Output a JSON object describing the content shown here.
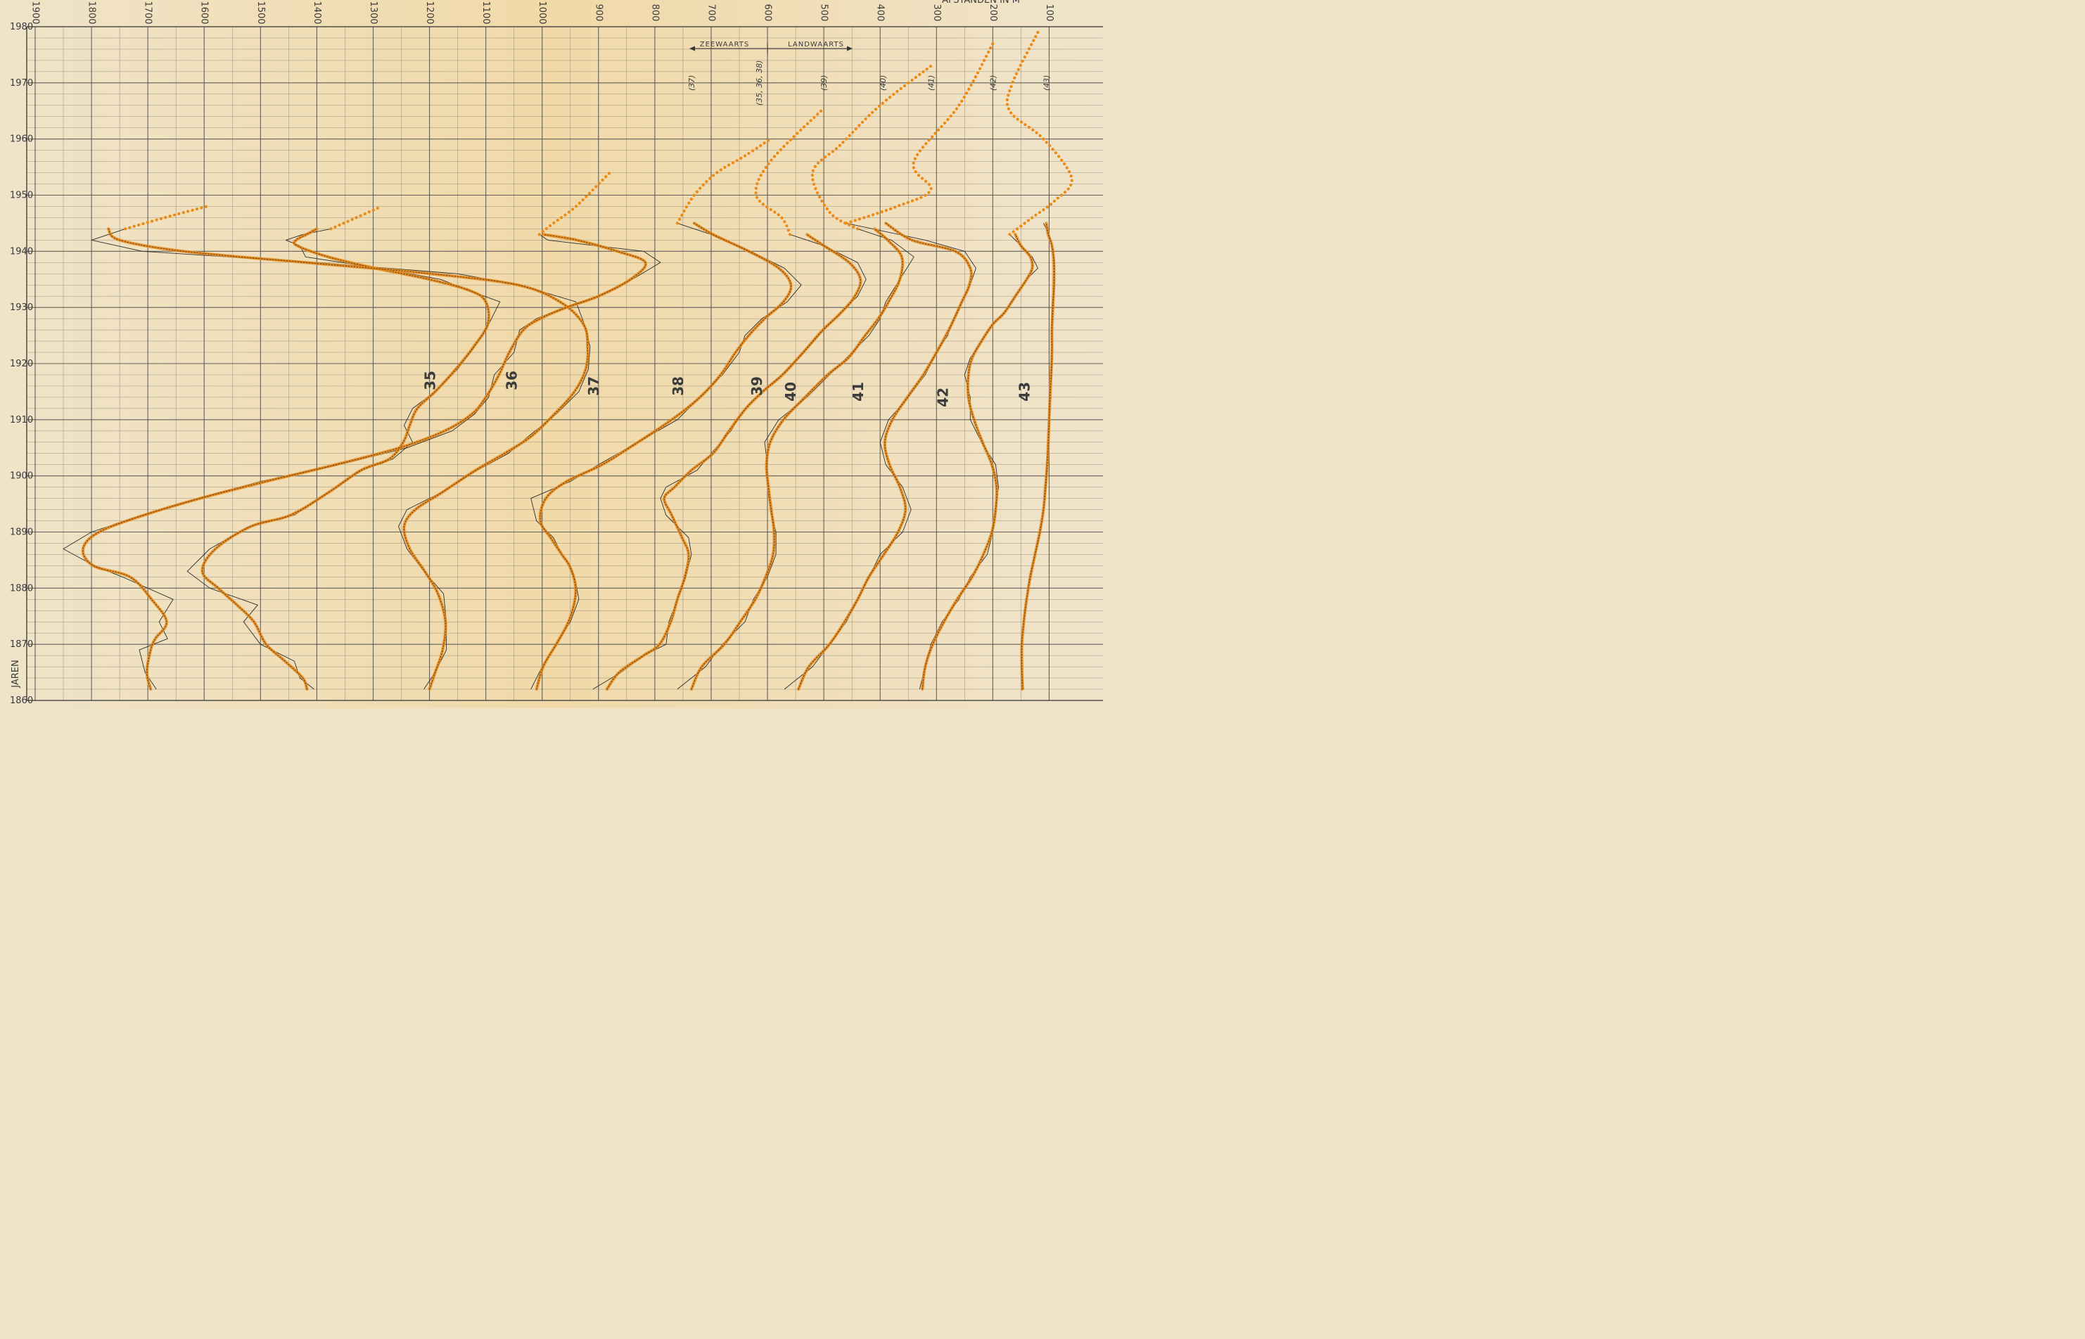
{
  "chart_data": {
    "type": "line",
    "x_axis": {
      "ticks": [
        1900,
        1800,
        1700,
        1600,
        1500,
        1400,
        1300,
        1200,
        1100,
        1000,
        900,
        800,
        700,
        600,
        500,
        400,
        300,
        200,
        100
      ],
      "xlim": [
        1905,
        80
      ],
      "header_fragment": "AFSTANDEN IN M"
    },
    "y_axis": {
      "ylabel": "JAREN",
      "ticks": [
        1860,
        1870,
        1880,
        1890,
        1900,
        1910,
        1920,
        1930,
        1940,
        1950,
        1960,
        1970,
        1980
      ],
      "ylim": [
        1860,
        1980
      ]
    },
    "grid": true,
    "annotations": {
      "seaward": "ZEEWAARTS",
      "landward": "LANDWAARTS",
      "arrow_origin_x": 600
    },
    "colors": {
      "background": "#efe3c6",
      "grid": "#4a4a4a",
      "observed_line": "#2d2d2d",
      "smoothed": "#e3891a",
      "smoothed_core": "#7a3a05",
      "extrapolation": "#ec8a14"
    },
    "series": [
      {
        "name": "35",
        "observed": [
          [
            1405,
            1862
          ],
          [
            1430,
            1864
          ],
          [
            1440,
            1867
          ],
          [
            1500,
            1870
          ],
          [
            1530,
            1874
          ],
          [
            1505,
            1877
          ],
          [
            1590,
            1880
          ],
          [
            1630,
            1883
          ],
          [
            1590,
            1887
          ],
          [
            1520,
            1891
          ],
          [
            1440,
            1893
          ],
          [
            1380,
            1897
          ],
          [
            1320,
            1901
          ],
          [
            1265,
            1903
          ],
          [
            1230,
            1906
          ],
          [
            1245,
            1909
          ],
          [
            1230,
            1912
          ],
          [
            1190,
            1915
          ],
          [
            1150,
            1919
          ],
          [
            1120,
            1923
          ],
          [
            1095,
            1927
          ],
          [
            1075,
            1931
          ],
          [
            1130,
            1933
          ],
          [
            1180,
            1935
          ],
          [
            1290,
            1937
          ],
          [
            1420,
            1939
          ],
          [
            1430,
            1941
          ],
          [
            1455,
            1942
          ],
          [
            1425,
            1943
          ],
          [
            1375,
            1944
          ]
        ],
        "extrapolation": [
          [
            1375,
            1944
          ],
          [
            1330,
            1946
          ],
          [
            1285,
            1948
          ]
        ],
        "label_pos": [
          1190,
          1917
        ]
      },
      {
        "name": "36",
        "observed": [
          [
            1210,
            1862
          ],
          [
            1190,
            1865
          ],
          [
            1170,
            1869
          ],
          [
            1170,
            1874
          ],
          [
            1175,
            1879
          ],
          [
            1210,
            1883
          ],
          [
            1240,
            1887
          ],
          [
            1255,
            1891
          ],
          [
            1240,
            1894
          ],
          [
            1180,
            1897
          ],
          [
            1115,
            1901
          ],
          [
            1060,
            1904
          ],
          [
            1025,
            1907
          ],
          [
            975,
            1911
          ],
          [
            935,
            1915
          ],
          [
            918,
            1919
          ],
          [
            915,
            1923
          ],
          [
            925,
            1927
          ],
          [
            940,
            1931
          ],
          [
            1040,
            1934
          ],
          [
            1150,
            1936
          ],
          [
            1400,
            1938
          ],
          [
            1710,
            1940
          ],
          [
            1800,
            1942
          ],
          [
            1740,
            1944
          ]
        ],
        "extrapolation": [
          [
            1740,
            1944
          ],
          [
            1670,
            1946
          ],
          [
            1595,
            1948
          ]
        ],
        "label_pos": [
          1045,
          1917
        ]
      },
      {
        "name": "37",
        "observed": [
          [
            1685,
            1862
          ],
          [
            1705,
            1865
          ],
          [
            1715,
            1869
          ],
          [
            1665,
            1871
          ],
          [
            1680,
            1874
          ],
          [
            1655,
            1878
          ],
          [
            1745,
            1882
          ],
          [
            1795,
            1884
          ],
          [
            1850,
            1887
          ],
          [
            1800,
            1890
          ],
          [
            1710,
            1893
          ],
          [
            1610,
            1896
          ],
          [
            1500,
            1899
          ],
          [
            1360,
            1902
          ],
          [
            1240,
            1905
          ],
          [
            1160,
            1908
          ],
          [
            1120,
            1911
          ],
          [
            1095,
            1914
          ],
          [
            1085,
            1918
          ],
          [
            1050,
            1922
          ],
          [
            1040,
            1926
          ],
          [
            1010,
            1928
          ],
          [
            960,
            1930
          ],
          [
            900,
            1932
          ],
          [
            840,
            1935
          ],
          [
            790,
            1938
          ],
          [
            820,
            1940
          ],
          [
            990,
            1942
          ],
          [
            1005,
            1943
          ]
        ],
        "extrapolation": [
          [
            1005,
            1943
          ],
          [
            980,
            1945
          ],
          [
            940,
            1948
          ],
          [
            880,
            1954
          ]
        ],
        "label_pos": [
          900,
          1916
        ]
      },
      {
        "name": "38",
        "observed": [
          [
            1020,
            1862
          ],
          [
            1000,
            1866
          ],
          [
            975,
            1870
          ],
          [
            950,
            1874
          ],
          [
            935,
            1878
          ],
          [
            940,
            1881
          ],
          [
            950,
            1884
          ],
          [
            965,
            1886
          ],
          [
            980,
            1889
          ],
          [
            1010,
            1892
          ],
          [
            1020,
            1896
          ],
          [
            950,
            1899
          ],
          [
            900,
            1902
          ],
          [
            830,
            1906
          ],
          [
            760,
            1910
          ],
          [
            720,
            1914
          ],
          [
            680,
            1918
          ],
          [
            650,
            1922
          ],
          [
            640,
            1925
          ],
          [
            610,
            1928
          ],
          [
            565,
            1931
          ],
          [
            540,
            1934
          ],
          [
            570,
            1937
          ],
          [
            630,
            1940
          ],
          [
            700,
            1943
          ],
          [
            760,
            1945
          ]
        ],
        "extrapolation": [
          [
            760,
            1945
          ],
          [
            730,
            1950
          ],
          [
            690,
            1954
          ],
          [
            640,
            1957
          ],
          [
            595,
            1960
          ]
        ],
        "label_pos": [
          750,
          1916
        ]
      },
      {
        "name": "39",
        "observed": [
          [
            910,
            1862
          ],
          [
            860,
            1865
          ],
          [
            820,
            1868
          ],
          [
            780,
            1870
          ],
          [
            775,
            1874
          ],
          [
            760,
            1878
          ],
          [
            745,
            1882
          ],
          [
            735,
            1886
          ],
          [
            740,
            1889
          ],
          [
            780,
            1893
          ],
          [
            790,
            1896
          ],
          [
            780,
            1898
          ],
          [
            725,
            1901
          ],
          [
            700,
            1904
          ],
          [
            665,
            1908
          ],
          [
            640,
            1912
          ],
          [
            610,
            1915
          ],
          [
            575,
            1918
          ],
          [
            535,
            1922
          ],
          [
            500,
            1926
          ],
          [
            470,
            1929
          ],
          [
            440,
            1932
          ],
          [
            425,
            1935
          ],
          [
            440,
            1938
          ],
          [
            500,
            1941
          ],
          [
            560,
            1943
          ]
        ],
        "extrapolation": [
          [
            560,
            1943
          ],
          [
            575,
            1946
          ],
          [
            620,
            1950
          ],
          [
            595,
            1956
          ],
          [
            505,
            1965
          ]
        ],
        "label_pos": [
          610,
          1916
        ]
      },
      {
        "name": "40",
        "observed": [
          [
            760,
            1862
          ],
          [
            710,
            1866
          ],
          [
            680,
            1870
          ],
          [
            640,
            1874
          ],
          [
            625,
            1878
          ],
          [
            600,
            1882
          ],
          [
            585,
            1886
          ],
          [
            585,
            1890
          ],
          [
            595,
            1894
          ],
          [
            600,
            1898
          ],
          [
            600,
            1902
          ],
          [
            605,
            1906
          ],
          [
            580,
            1910
          ],
          [
            530,
            1914
          ],
          [
            490,
            1918
          ],
          [
            460,
            1921
          ],
          [
            420,
            1925
          ],
          [
            400,
            1928
          ],
          [
            390,
            1931
          ],
          [
            365,
            1935
          ],
          [
            340,
            1939
          ],
          [
            380,
            1942
          ],
          [
            440,
            1944
          ]
        ],
        "extrapolation": [
          [
            440,
            1944
          ],
          [
            490,
            1947
          ],
          [
            520,
            1954
          ],
          [
            470,
            1959
          ],
          [
            400,
            1966
          ],
          [
            310,
            1973
          ]
        ],
        "label_pos": [
          550,
          1915
        ]
      },
      {
        "name": "41",
        "observed": [
          [
            570,
            1862
          ],
          [
            520,
            1866
          ],
          [
            490,
            1870
          ],
          [
            460,
            1874
          ],
          [
            440,
            1878
          ],
          [
            420,
            1882
          ],
          [
            400,
            1886
          ],
          [
            360,
            1890
          ],
          [
            345,
            1894
          ],
          [
            360,
            1898
          ],
          [
            390,
            1902
          ],
          [
            400,
            1906
          ],
          [
            385,
            1910
          ],
          [
            350,
            1914
          ],
          [
            320,
            1918
          ],
          [
            300,
            1922
          ],
          [
            280,
            1925
          ],
          [
            270,
            1928
          ],
          [
            255,
            1931
          ],
          [
            240,
            1934
          ],
          [
            230,
            1937
          ],
          [
            250,
            1940
          ],
          [
            320,
            1942
          ],
          [
            460,
            1945
          ]
        ],
        "extrapolation": [
          [
            460,
            1945
          ],
          [
            370,
            1948
          ],
          [
            310,
            1951
          ],
          [
            340,
            1956
          ],
          [
            260,
            1966
          ],
          [
            200,
            1977
          ]
        ],
        "label_pos": [
          430,
          1915
        ]
      },
      {
        "name": "42",
        "observed": [
          [
            330,
            1862
          ],
          [
            320,
            1866
          ],
          [
            310,
            1870
          ],
          [
            290,
            1874
          ],
          [
            260,
            1878
          ],
          [
            240,
            1882
          ],
          [
            210,
            1886
          ],
          [
            200,
            1890
          ],
          [
            195,
            1894
          ],
          [
            190,
            1898
          ],
          [
            195,
            1902
          ],
          [
            220,
            1906
          ],
          [
            240,
            1910
          ],
          [
            240,
            1914
          ],
          [
            250,
            1918
          ],
          [
            240,
            1921
          ],
          [
            220,
            1924
          ],
          [
            200,
            1927
          ],
          [
            180,
            1929
          ],
          [
            160,
            1932
          ],
          [
            140,
            1935
          ],
          [
            120,
            1937
          ],
          [
            130,
            1939
          ],
          [
            150,
            1941
          ],
          [
            170,
            1943
          ]
        ],
        "extrapolation": [
          [
            170,
            1943
          ],
          [
            130,
            1946
          ],
          [
            90,
            1949
          ],
          [
            60,
            1953
          ],
          [
            110,
            1960
          ],
          [
            170,
            1965
          ],
          [
            165,
            1970
          ],
          [
            120,
            1979
          ]
        ],
        "label_pos": [
          280,
          1914
        ]
      },
      {
        "name": "43",
        "observed": [
          [
            145,
            1862
          ],
          [
            150,
            1866
          ],
          [
            150,
            1870
          ],
          [
            145,
            1874
          ],
          [
            140,
            1878
          ],
          [
            135,
            1882
          ],
          [
            125,
            1886
          ],
          [
            115,
            1890
          ],
          [
            110,
            1894
          ],
          [
            105,
            1898
          ],
          [
            105,
            1902
          ],
          [
            100,
            1906
          ],
          [
            100,
            1910
          ],
          [
            100,
            1914
          ],
          [
            95,
            1918
          ],
          [
            95,
            1922
          ],
          [
            95,
            1926
          ],
          [
            95,
            1930
          ],
          [
            90,
            1934
          ],
          [
            90,
            1938
          ],
          [
            95,
            1941
          ],
          [
            100,
            1943
          ],
          [
            110,
            1945
          ]
        ],
        "extrapolation": [],
        "label_pos": [
          135,
          1915
        ]
      }
    ],
    "series_tags": [
      {
        "text": "(37)",
        "x": 730,
        "y": 1970
      },
      {
        "text": "(35, 36, 38)",
        "x": 610,
        "y": 1970
      },
      {
        "text": "(39)",
        "x": 495,
        "y": 1970
      },
      {
        "text": "(40)",
        "x": 390,
        "y": 1970
      },
      {
        "text": "(41)",
        "x": 305,
        "y": 1970
      },
      {
        "text": "(42)",
        "x": 195,
        "y": 1970
      },
      {
        "text": "(43)",
        "x": 100,
        "y": 1970
      }
    ]
  }
}
